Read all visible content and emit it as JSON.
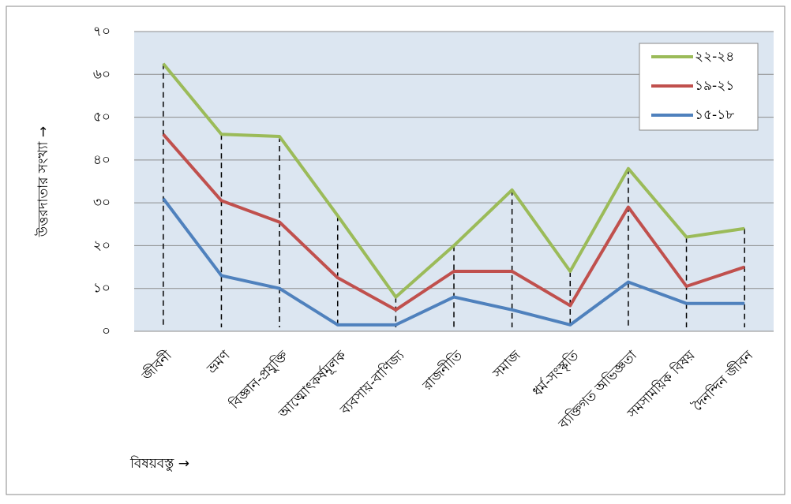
{
  "chart_data": {
    "type": "line",
    "y_label": "উত্তরদাতার সংখ্যা →",
    "x_label": "বিষয়বস্তু →",
    "categories": [
      "জীবনী",
      "ভ্রমণ",
      "বিজ্ঞান-প্রযুক্তি",
      "আত্মোৎকর্ষমূলক",
      "ব্যবসায়-বাণিজ্য",
      "রাজনীতি",
      "সমাজ",
      "ধর্ম-সংস্কৃতি",
      "ব্যক্তিগত অভিজ্ঞতা",
      "সমসাময়িক বিষয়",
      "দৈনন্দিন জীবন"
    ],
    "series": [
      {
        "name": "২২-২৪",
        "color": "#9bbb59",
        "values": [
          62.5,
          46,
          45.5,
          27,
          8,
          20,
          33,
          14,
          38,
          22,
          24
        ]
      },
      {
        "name": "১৯-২১",
        "color": "#c0504d",
        "values": [
          46,
          30.5,
          25.5,
          12.5,
          5,
          14,
          14,
          6,
          29,
          10.5,
          15
        ]
      },
      {
        "name": "১৫-১৮",
        "color": "#4f81bd",
        "values": [
          31,
          13,
          10,
          1.5,
          1.5,
          8,
          5,
          1.5,
          11.5,
          6.5,
          6.5
        ]
      }
    ],
    "ylim": [
      0,
      70
    ],
    "yticks": [
      {
        "value": 0,
        "label": "০"
      },
      {
        "value": 10,
        "label": "১০"
      },
      {
        "value": 20,
        "label": "২০"
      },
      {
        "value": 30,
        "label": "৩০"
      },
      {
        "value": 40,
        "label": "৪০"
      },
      {
        "value": 50,
        "label": "৫০"
      },
      {
        "value": 60,
        "label": "৬০"
      },
      {
        "value": 70,
        "label": "৭০"
      }
    ],
    "grid": true,
    "drop_lines": true,
    "legend": "upper right",
    "plot_background": "#dce6f1"
  }
}
